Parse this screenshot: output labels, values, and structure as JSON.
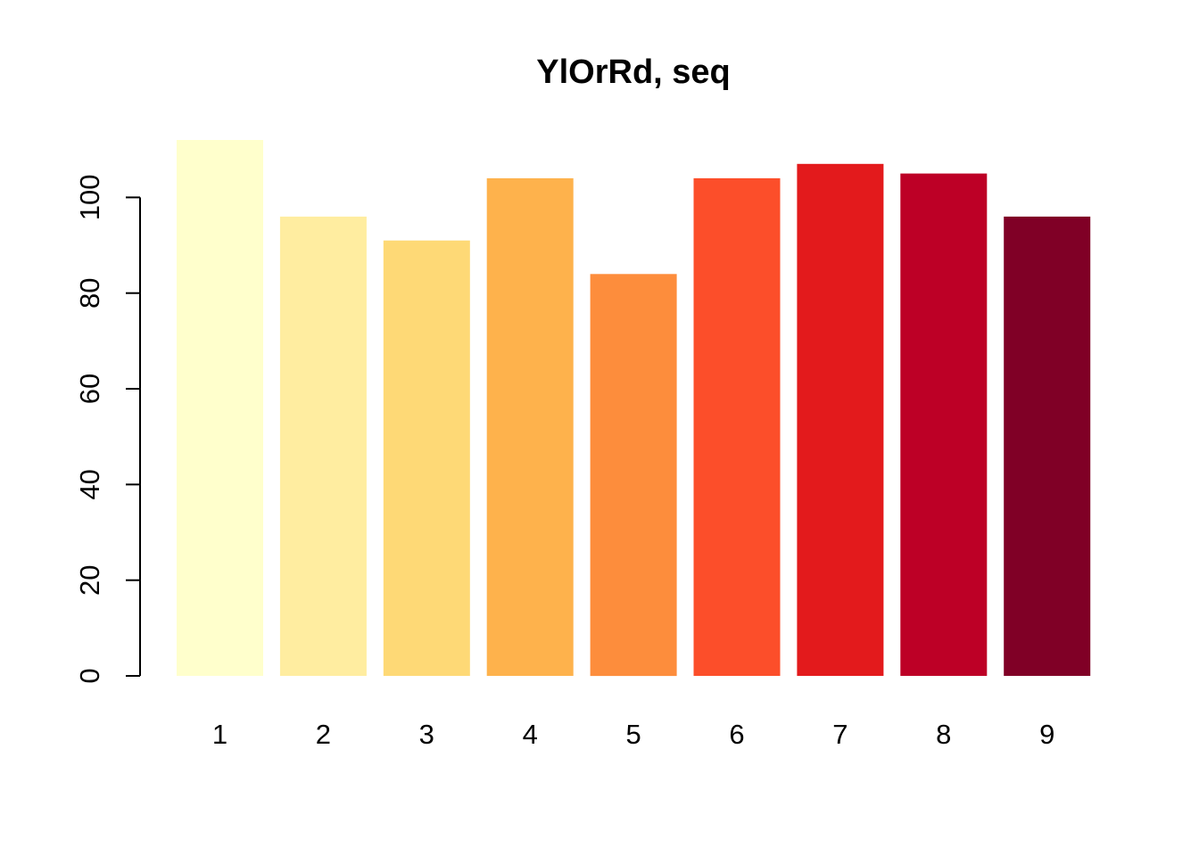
{
  "chart_data": {
    "type": "bar",
    "title": "YlOrRd, seq",
    "xlabel": "",
    "ylabel": "",
    "categories": [
      "1",
      "2",
      "3",
      "4",
      "5",
      "6",
      "7",
      "8",
      "9"
    ],
    "values": [
      112,
      96,
      91,
      104,
      84,
      104,
      107,
      105,
      96
    ],
    "colors": [
      "#FFFFCC",
      "#FFEDA0",
      "#FED976",
      "#FEB24C",
      "#FD8D3C",
      "#FC4E2A",
      "#E31A1C",
      "#BD0026",
      "#800026"
    ],
    "ylim": [
      0,
      112
    ],
    "y_ticks": [
      "0",
      "20",
      "40",
      "60",
      "80",
      "100"
    ],
    "grid": false,
    "legend": "none"
  }
}
